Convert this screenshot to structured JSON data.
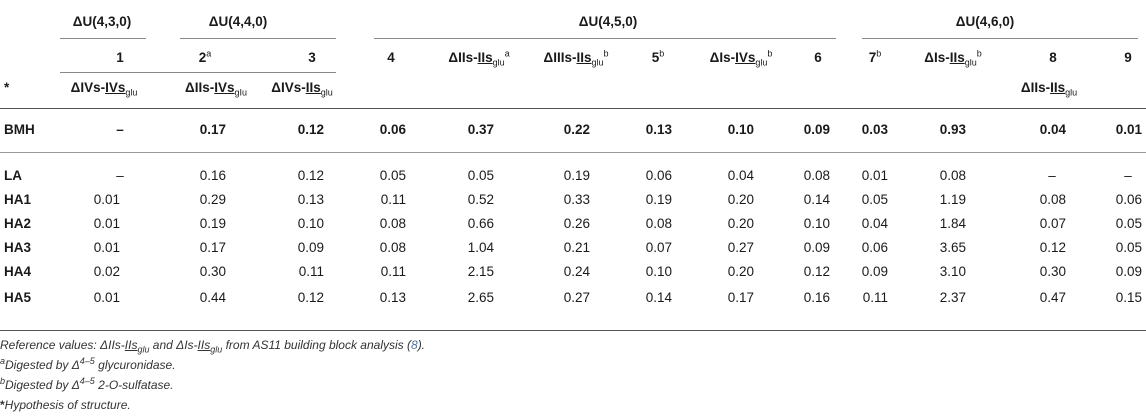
{
  "group_headers": [
    "ΔU(4,3,0)",
    "ΔU(4,4,0)",
    "ΔU(4,5,0)",
    "ΔU(4,6,0)"
  ],
  "col_numbers": [
    {
      "n": "1",
      "sup": ""
    },
    {
      "n": "2",
      "sup": "a"
    },
    {
      "n": "3",
      "sup": ""
    },
    {
      "n": "4",
      "sup": ""
    },
    {
      "n": "5",
      "sup": "b"
    },
    {
      "n": "6",
      "sup": ""
    },
    {
      "n": "7",
      "sup": "b"
    },
    {
      "n": "8",
      "sup": ""
    },
    {
      "n": "9",
      "sup": ""
    }
  ],
  "row_labels": [
    "*",
    "BMH",
    "LA",
    "HA1",
    "HA2",
    "HA3",
    "HA4",
    "HA5"
  ],
  "structures": {
    "s1": {
      "pre": "ΔIVs-",
      "ul": "IVs",
      "sub": "glu"
    },
    "s2": {
      "pre": "ΔIIs-",
      "ul": "IVs",
      "sub": "gIu"
    },
    "s3": {
      "pre": "ΔIVs-",
      "ul": "IIs",
      "sub": "glu"
    },
    "s4": {
      "pre": "ΔIIs-",
      "ul": "IIs",
      "sub": "glu",
      "sup": "a"
    },
    "s5": {
      "pre": "ΔIIIs-",
      "ul": "IIs",
      "sub": "glu",
      "sup": "b"
    },
    "s6": {
      "pre": "ΔIs-",
      "ul": "IVs",
      "sub": "glu",
      "sup": "b"
    },
    "s7": {
      "pre": "ΔIs-",
      "ul": "IIs",
      "sub": "glu",
      "sup": "b"
    },
    "s8": {
      "pre": "ΔIIs-",
      "ul": "IIs",
      "sub": "glu"
    }
  },
  "rows": {
    "BMH": [
      "–",
      "0.17",
      "0.12",
      "0.06",
      "0.37",
      "0.22",
      "0.13",
      "0.10",
      "0.09",
      "0.03",
      "0.93",
      "0.04",
      "0.01"
    ],
    "LA": [
      "–",
      "0.16",
      "0.12",
      "0.05",
      "0.05",
      "0.19",
      "0.06",
      "0.04",
      "0.08",
      "0.01",
      "0.08",
      "–",
      "–"
    ],
    "HA1": [
      "0.01",
      "0.29",
      "0.13",
      "0.11",
      "0.52",
      "0.33",
      "0.19",
      "0.20",
      "0.14",
      "0.05",
      "1.19",
      "0.08",
      "0.06"
    ],
    "HA2": [
      "0.01",
      "0.19",
      "0.10",
      "0.08",
      "0.66",
      "0.26",
      "0.08",
      "0.20",
      "0.10",
      "0.04",
      "1.84",
      "0.07",
      "0.05"
    ],
    "HA3": [
      "0.01",
      "0.17",
      "0.09",
      "0.08",
      "1.04",
      "0.21",
      "0.07",
      "0.27",
      "0.09",
      "0.06",
      "3.65",
      "0.12",
      "0.05"
    ],
    "HA4": [
      "0.02",
      "0.30",
      "0.11",
      "0.11",
      "2.15",
      "0.24",
      "0.10",
      "0.20",
      "0.12",
      "0.09",
      "3.10",
      "0.30",
      "0.09"
    ],
    "HA5": [
      "0.01",
      "0.44",
      "0.12",
      "0.13",
      "2.65",
      "0.27",
      "0.14",
      "0.17",
      "0.16",
      "0.11",
      "2.37",
      "0.47",
      "0.15"
    ]
  },
  "footnotes": {
    "ref": {
      "a": "Reference values: ΔIIs-",
      "b": "IIs",
      "c": "glu",
      "d": " and ΔIs-",
      "e": "IIs",
      "f": "glu",
      "g": " from AS11 building block analysis (",
      "h": "8",
      "i": ")."
    },
    "a": {
      "mark": "a",
      "text1": "Digested by Δ",
      "sup": "4–5",
      "text2": " glycuronidase."
    },
    "b": {
      "mark": "b",
      "text1": "Digested by Δ",
      "sup": "4–5",
      "text2": " 2-O-sulfatase."
    },
    "star": {
      "mark": "*",
      "text": "Hypothesis of structure."
    }
  },
  "colors": {
    "rule": "#555555",
    "text": "#1a1a1a",
    "link": "#4a6fa5"
  }
}
